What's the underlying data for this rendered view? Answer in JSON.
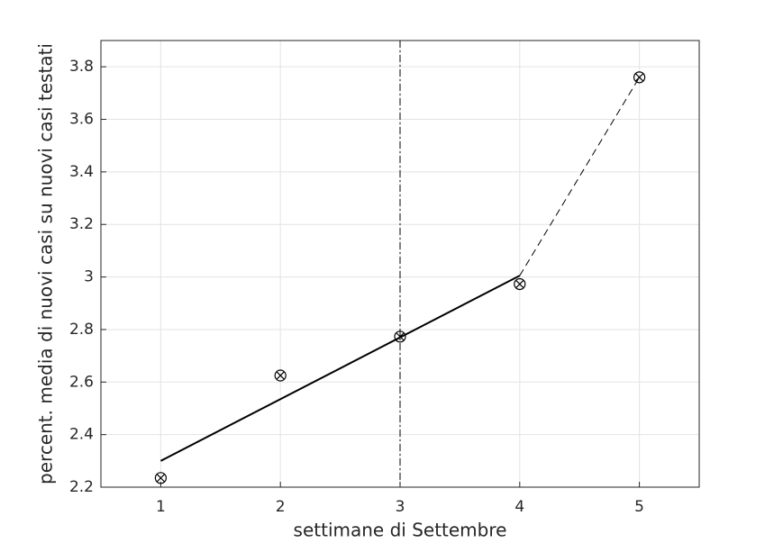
{
  "chart_data": {
    "type": "scatter",
    "xlabel": "settimane di Settembre",
    "ylabel": "percent. media di nuovi casi su nuovi casi testati",
    "xlim": [
      0.5,
      5.5
    ],
    "ylim": [
      2.2,
      3.9
    ],
    "xticks": [
      1,
      2,
      3,
      4,
      5
    ],
    "yticks": [
      2.2,
      2.4,
      2.6,
      2.8,
      3,
      3.2,
      3.4,
      3.6,
      3.8
    ],
    "grid": true,
    "series": [
      {
        "x": [
          1,
          2,
          3,
          4,
          5
        ],
        "values": [
          2.235,
          2.625,
          2.773,
          2.973,
          3.76
        ],
        "color": "#000000",
        "style": "markers"
      },
      {
        "x": [
          1,
          4
        ],
        "values": [
          2.3,
          3.005
        ],
        "color": "#000000",
        "style": "solid"
      },
      {
        "x": [
          4,
          5
        ],
        "values": [
          3.005,
          3.76
        ],
        "color": "#000000",
        "style": "dashed"
      }
    ],
    "vline": {
      "x": 3,
      "color": "#000000",
      "style": "dashdot"
    }
  }
}
